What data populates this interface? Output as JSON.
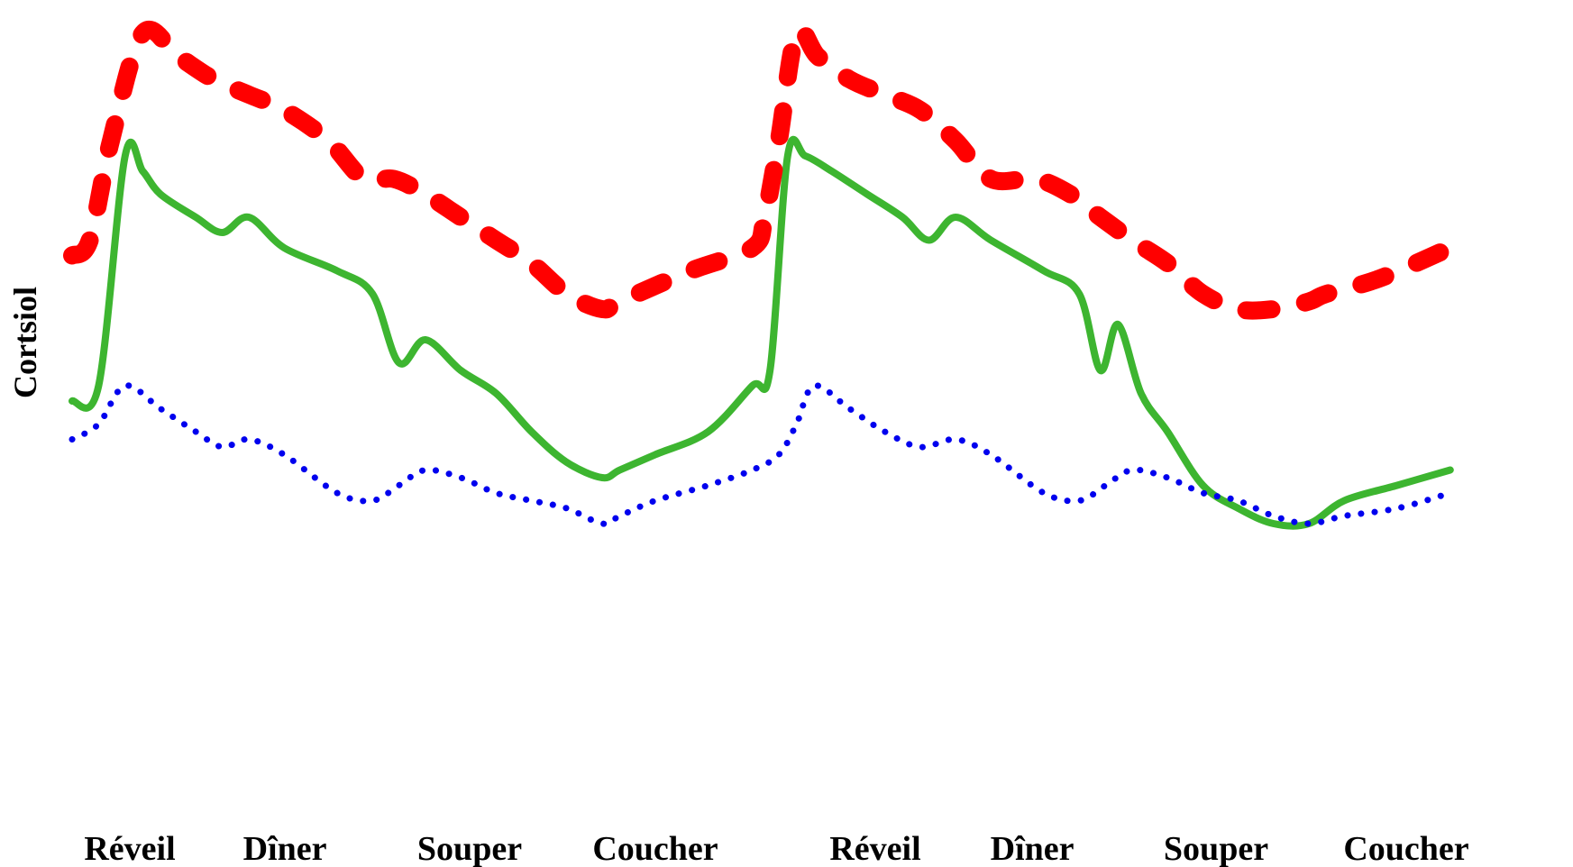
{
  "chart_data": {
    "type": "line",
    "title": "",
    "xlabel": "",
    "ylabel": "Cortsiol",
    "categories": [
      "Réveil",
      "Dîner",
      "Souper",
      "Coucher",
      "Réveil",
      "Dîner",
      "Souper",
      "Coucher"
    ],
    "ylim": [
      0,
      100
    ],
    "grid": false,
    "legend": "none",
    "series": [
      {
        "style": "dashed",
        "color": "#ff0000",
        "x": [
          0,
          0.1,
          0.22,
          0.4,
          0.6,
          0.8,
          1,
          1.2,
          1.45,
          1.65,
          1.82,
          2,
          2.2,
          2.4,
          2.6,
          2.8,
          3,
          3.1,
          3.5,
          3.85,
          3.92,
          4,
          4.1,
          4.22,
          4.4,
          4.6,
          4.8,
          5,
          5.2,
          5.45,
          5.65,
          5.82,
          6,
          6.2,
          6.4,
          6.6,
          6.8,
          7,
          7.1,
          7.4,
          7.8
        ],
        "values": [
          69,
          71,
          84,
          98,
          95,
          92,
          90,
          88,
          84,
          79,
          79,
          77,
          74,
          71,
          68,
          64,
          62,
          63,
          67,
          70,
          74,
          84,
          98,
          95,
          92,
          90,
          88,
          84,
          79,
          79,
          77,
          74,
          71,
          68,
          64,
          62,
          62,
          63,
          64,
          66,
          70
        ]
      },
      {
        "style": "solid",
        "color": "#3db530",
        "x": [
          0,
          0.15,
          0.3,
          0.4,
          0.5,
          0.7,
          0.85,
          1,
          1.2,
          1.5,
          1.7,
          1.85,
          2,
          2.2,
          2.4,
          2.6,
          2.8,
          3,
          3.1,
          3.3,
          3.6,
          3.85,
          3.95,
          4.05,
          4.15,
          4.3,
          4.5,
          4.7,
          4.85,
          5,
          5.2,
          5.5,
          5.7,
          5.82,
          5.92,
          6.05,
          6.2,
          6.4,
          6.6,
          6.8,
          7,
          7.2,
          7.5,
          7.8
        ],
        "values": [
          50,
          52,
          82,
          80,
          77,
          74,
          72,
          74,
          70,
          67,
          64,
          55,
          58,
          54,
          51,
          46,
          42,
          40,
          41,
          43,
          46,
          52,
          54,
          82,
          82,
          80,
          77,
          74,
          71,
          74,
          71,
          67,
          64,
          54,
          60,
          51,
          46,
          39,
          36,
          34,
          34,
          37,
          39,
          41
        ]
      },
      {
        "style": "dotted",
        "color": "#0000ee",
        "x": [
          0,
          0.15,
          0.3,
          0.5,
          0.7,
          0.85,
          1,
          1.2,
          1.5,
          1.7,
          1.85,
          2,
          2.2,
          2.4,
          2.6,
          2.8,
          3,
          3.1,
          3.3,
          3.6,
          3.85,
          4,
          4.1,
          4.2,
          4.4,
          4.6,
          4.8,
          5,
          5.2,
          5.5,
          5.7,
          5.85,
          6,
          6.2,
          6.4,
          6.6,
          6.8,
          7,
          7.2,
          7.5,
          7.8
        ],
        "values": [
          45,
          47,
          52,
          49,
          46,
          44,
          45,
          43,
          38,
          37,
          39,
          41,
          40,
          38,
          37,
          36,
          34,
          35,
          37,
          39,
          41,
          43,
          47,
          52,
          49,
          46,
          44,
          45,
          43,
          38,
          37,
          39,
          41,
          40,
          38,
          37,
          35,
          34,
          35,
          36,
          38
        ]
      }
    ]
  }
}
